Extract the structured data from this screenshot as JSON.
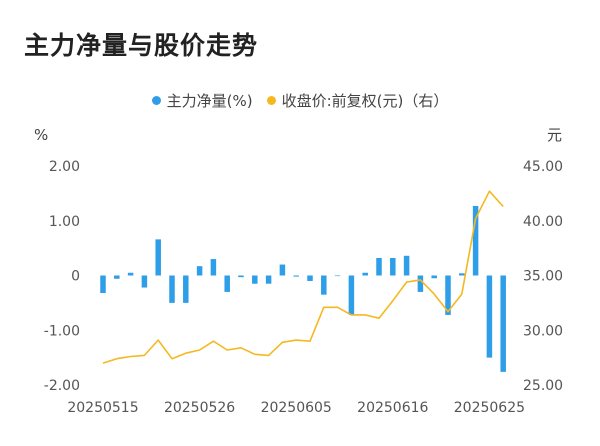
{
  "title": "主力净量与股价走势",
  "legend": [
    {
      "label": "主力净量(%)",
      "color": "#2f9ee8"
    },
    {
      "label": "收盘价:前复权(元)（右）",
      "color": "#f5b820"
    }
  ],
  "chart_data": {
    "type": "bar+line",
    "title": "主力净量与股价走势",
    "left_axis": {
      "unit": "%",
      "ticks": [
        "2.00",
        "1.00",
        "0",
        "-1.00",
        "-2.00"
      ],
      "range": [
        -2,
        2
      ]
    },
    "right_axis": {
      "unit": "元",
      "ticks": [
        "45.00",
        "40.00",
        "35.00",
        "30.00",
        "25.00"
      ],
      "range": [
        25,
        45
      ]
    },
    "x_tick_labels": [
      "20250515",
      "20250526",
      "20250605",
      "20250616",
      "20250625"
    ],
    "x_tick_index": [
      0,
      7,
      14,
      21,
      28
    ],
    "series": [
      {
        "name": "主力净量(%)",
        "kind": "bar",
        "axis": "left",
        "color": "#2f9ee8",
        "values": [
          -0.32,
          -0.06,
          0.05,
          -0.22,
          0.66,
          -0.5,
          -0.5,
          0.17,
          0.3,
          -0.3,
          -0.03,
          -0.15,
          -0.15,
          0.2,
          -0.02,
          -0.1,
          -0.35,
          0,
          -0.72,
          0.05,
          0.32,
          0.32,
          0.36,
          -0.3,
          -0.05,
          -0.72,
          0.04,
          1.27,
          -1.5,
          -1.76
        ]
      },
      {
        "name": "收盘价:前复权(元)（右）",
        "kind": "line",
        "axis": "right",
        "color": "#f5b820",
        "values": [
          27.0,
          27.4,
          27.6,
          27.7,
          29.1,
          27.4,
          27.9,
          28.2,
          29.0,
          28.2,
          28.4,
          27.8,
          27.7,
          28.9,
          29.1,
          29.0,
          32.1,
          32.1,
          31.4,
          31.4,
          31.1,
          32.7,
          34.4,
          34.6,
          33.3,
          31.7,
          33.3,
          40.2,
          42.7,
          41.3
        ]
      }
    ]
  }
}
